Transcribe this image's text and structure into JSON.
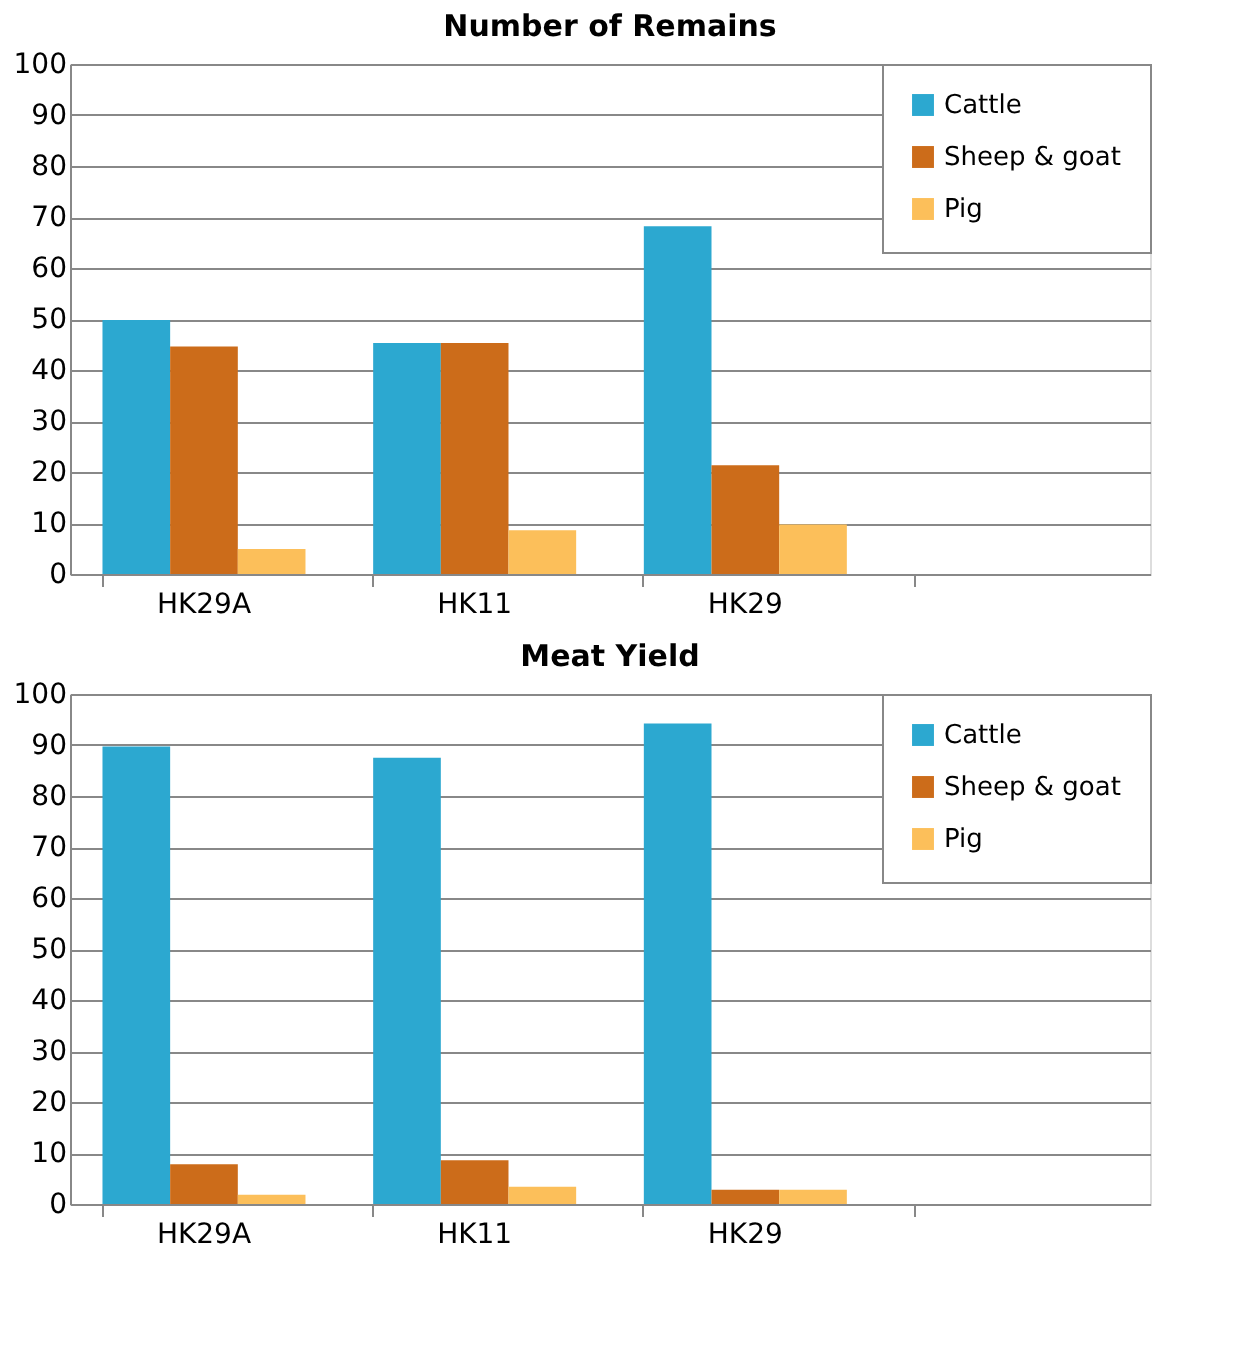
{
  "chart_data": [
    {
      "type": "bar",
      "title": "Number of Remains",
      "categories": [
        "HK29A",
        "HK11",
        "HK29",
        null
      ],
      "series": [
        {
          "name": "Cattle",
          "color": "#2ca8d0",
          "values": [
            49.8,
            45.3,
            68.2,
            null
          ]
        },
        {
          "name": "Sheep & goat",
          "color": "#cc6c1a",
          "values": [
            44.6,
            45.3,
            21.3,
            null
          ]
        },
        {
          "name": "Pig",
          "color": "#fcbf5a",
          "values": [
            4.9,
            8.6,
            9.7,
            null
          ]
        }
      ],
      "ylim": [
        0,
        100
      ],
      "yticks": [
        0,
        10,
        20,
        30,
        40,
        50,
        60,
        70,
        80,
        90,
        100
      ],
      "grid": "y",
      "legend": "top right"
    },
    {
      "type": "bar",
      "title": "Meat Yield",
      "categories": [
        "HK29A",
        "HK11",
        "HK29",
        null
      ],
      "series": [
        {
          "name": "Cattle",
          "color": "#2ca8d0",
          "values": [
            89.7,
            87.5,
            94.2,
            null
          ]
        },
        {
          "name": "Sheep & goat",
          "color": "#cc6c1a",
          "values": [
            7.8,
            8.6,
            2.8,
            null
          ]
        },
        {
          "name": "Pig",
          "color": "#fcbf5a",
          "values": [
            1.8,
            3.4,
            2.8,
            null
          ]
        }
      ],
      "ylim": [
        0,
        100
      ],
      "yticks": [
        0,
        10,
        20,
        30,
        40,
        50,
        60,
        70,
        80,
        90,
        100
      ],
      "grid": "y",
      "legend": "top right"
    }
  ]
}
